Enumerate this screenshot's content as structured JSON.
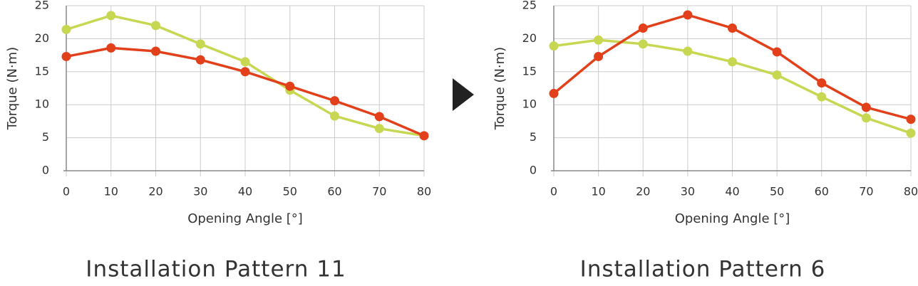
{
  "chart_data": [
    {
      "type": "line",
      "title": "Installation Pattern 11",
      "x_label": "Opening Angle [°]",
      "y_label": "Torque (N·m)",
      "x": [
        0,
        10,
        20,
        30,
        40,
        50,
        60,
        70,
        80
      ],
      "series": [
        {
          "color": "#c8d752",
          "values": [
            21.4,
            23.5,
            22.0,
            19.2,
            16.5,
            12.2,
            8.3,
            6.4,
            5.3
          ]
        },
        {
          "color": "#e1401a",
          "values": [
            17.3,
            18.6,
            18.1,
            16.8,
            15.0,
            12.8,
            10.6,
            8.2,
            5.3
          ]
        }
      ],
      "xlim": [
        0,
        80
      ],
      "xticks": [
        0,
        10,
        20,
        30,
        40,
        50,
        60,
        70,
        80
      ],
      "ylim": [
        0,
        25
      ],
      "yticks": [
        0,
        5,
        10,
        15,
        20,
        25
      ],
      "grid": true
    },
    {
      "type": "line",
      "title": "Installation Pattern 6",
      "x_label": "Opening Angle [°]",
      "y_label": "Torque (N·m)",
      "x": [
        0,
        10,
        20,
        30,
        40,
        50,
        60,
        70,
        80
      ],
      "series": [
        {
          "color": "#c8d752",
          "values": [
            18.9,
            19.8,
            19.2,
            18.1,
            16.5,
            14.5,
            11.2,
            8.0,
            5.7
          ]
        },
        {
          "color": "#e1401a",
          "values": [
            11.7,
            17.3,
            21.6,
            23.6,
            21.6,
            18.0,
            13.3,
            9.6,
            7.8
          ]
        }
      ],
      "xlim": [
        0,
        80
      ],
      "xticks": [
        0,
        10,
        20,
        30,
        40,
        50,
        60,
        70,
        80
      ],
      "ylim": [
        0,
        25
      ],
      "yticks": [
        0,
        5,
        10,
        15,
        20,
        25
      ],
      "grid": true
    }
  ]
}
